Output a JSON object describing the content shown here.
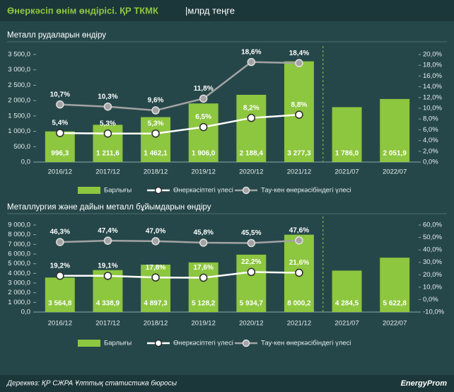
{
  "header": {
    "title": "Өнеркәсіп өнім өндірісі. ҚР ТКМК",
    "unit": "|млрд теңге"
  },
  "footer": {
    "source": "Дереккөз: ҚР СЖРА Ұлттық статистика бюросы",
    "logo": "EnergyProm"
  },
  "chart_data": [
    {
      "type": "bar",
      "title": "Металл рудаларын өндіру",
      "categories": [
        "2016/12",
        "2017/12",
        "2018/12",
        "2019/12",
        "2020/12",
        "2021/12",
        "2021/07",
        "2022/07"
      ],
      "series": [
        {
          "name": "Барлығы",
          "type": "bar",
          "color": "#8dc63f",
          "values": [
            996.3,
            1211.6,
            1462.1,
            1906.0,
            2188.4,
            3277.3,
            1786.0,
            2051.9
          ],
          "value_labels": [
            "996,3",
            "1 211,6",
            "1 462,1",
            "1 906,0",
            "2 188,4",
            "3 277,3",
            "1 786,0",
            "2 051,9"
          ]
        },
        {
          "name": "Өнеркәсіптегі үлесі",
          "type": "line",
          "axis": "y2",
          "color": "#ffffff",
          "values": [
            5.4,
            5.3,
            5.3,
            6.5,
            8.2,
            8.8,
            null,
            null
          ],
          "value_labels": [
            "5,4%",
            "5,3%",
            "5,3%",
            "6,5%",
            "8,2%",
            "8,8%",
            null,
            null
          ]
        },
        {
          "name": "Тау-кен өнеркәсібіндегі үлесі",
          "type": "line",
          "axis": "y2",
          "color": "#a3a3a3",
          "values": [
            10.7,
            10.3,
            9.6,
            11.8,
            18.6,
            18.4,
            null,
            null
          ],
          "value_labels": [
            "10,7%",
            "10,3%",
            "9,6%",
            "11,8%",
            "18,6%",
            "18,4%",
            null,
            null
          ]
        }
      ],
      "ylim": [
        0,
        3500
      ],
      "yticks": [
        {
          "value": 0,
          "label": "0,0"
        },
        {
          "value": 500,
          "label": "500,0"
        },
        {
          "value": 1000,
          "label": "1 000,0"
        },
        {
          "value": 1500,
          "label": "1 500,0"
        },
        {
          "value": 2000,
          "label": "2 000,0"
        },
        {
          "value": 2500,
          "label": "2 500,0"
        },
        {
          "value": 3000,
          "label": "3 000,0"
        },
        {
          "value": 3500,
          "label": "3 500,0"
        }
      ],
      "y2lim": [
        0,
        20
      ],
      "y2ticks": [
        {
          "value": 0,
          "label": "0,0%"
        },
        {
          "value": 2,
          "label": "2,0%"
        },
        {
          "value": 4,
          "label": "4,0%"
        },
        {
          "value": 6,
          "label": "6,0%"
        },
        {
          "value": 8,
          "label": "8,0%"
        },
        {
          "value": 10,
          "label": "10,0%"
        },
        {
          "value": 12,
          "label": "12,0%"
        },
        {
          "value": 14,
          "label": "14,0%"
        },
        {
          "value": 16,
          "label": "16,0%"
        },
        {
          "value": 18,
          "label": "18,0%"
        },
        {
          "value": 20,
          "label": "20,0%"
        }
      ]
    },
    {
      "type": "bar",
      "title": "Металлургия және дайын металл бұйымдарын өндіру",
      "categories": [
        "2016/12",
        "2017/12",
        "2018/12",
        "2019/12",
        "2020/12",
        "2021/12",
        "2021/07",
        "2022/07"
      ],
      "series": [
        {
          "name": "Барлығы",
          "type": "bar",
          "color": "#8dc63f",
          "values": [
            3564.8,
            4338.9,
            4897.3,
            5128.2,
            5934.7,
            8000.2,
            4284.5,
            5622.8
          ],
          "value_labels": [
            "3 564,8",
            "4 338,9",
            "4 897,3",
            "5 128,2",
            "5 934,7",
            "8 000,2",
            "4 284,5",
            "5 622,8"
          ]
        },
        {
          "name": "Өнеркәсіптегі үлесі",
          "type": "line",
          "axis": "y2",
          "color": "#ffffff",
          "values": [
            19.2,
            19.1,
            17.8,
            17.6,
            22.2,
            21.6,
            null,
            null
          ],
          "value_labels": [
            "19,2%",
            "19,1%",
            "17,8%",
            "17,6%",
            "22,2%",
            "21,6%",
            null,
            null
          ]
        },
        {
          "name": "Тау-кен өнеркәсібіндегі үлесі",
          "type": "line",
          "axis": "y2",
          "color": "#a3a3a3",
          "values": [
            46.3,
            47.4,
            47.0,
            45.8,
            45.5,
            47.6,
            null,
            null
          ],
          "value_labels": [
            "46,3%",
            "47,4%",
            "47,0%",
            "45,8%",
            "45,5%",
            "47,6%",
            null,
            null
          ]
        }
      ],
      "ylim": [
        0,
        9000
      ],
      "yticks": [
        {
          "value": 0,
          "label": "0,0"
        },
        {
          "value": 1000,
          "label": "1 000,0"
        },
        {
          "value": 2000,
          "label": "2 000,0"
        },
        {
          "value": 3000,
          "label": "3 000,0"
        },
        {
          "value": 4000,
          "label": "4 000,0"
        },
        {
          "value": 5000,
          "label": "5 000,0"
        },
        {
          "value": 6000,
          "label": "6 000,0"
        },
        {
          "value": 7000,
          "label": "7 000,0"
        },
        {
          "value": 8000,
          "label": "8 000,0"
        },
        {
          "value": 9000,
          "label": "9 000,0"
        }
      ],
      "y2lim": [
        -10,
        60
      ],
      "y2ticks": [
        {
          "value": -10,
          "label": "-10,0%"
        },
        {
          "value": 0,
          "label": "0,0%"
        },
        {
          "value": 10,
          "label": "10,0%"
        },
        {
          "value": 20,
          "label": "20,0%"
        },
        {
          "value": 30,
          "label": "30,0%"
        },
        {
          "value": 40,
          "label": "40,0%"
        },
        {
          "value": 50,
          "label": "50,0%"
        },
        {
          "value": 60,
          "label": "60,0%"
        }
      ]
    }
  ]
}
